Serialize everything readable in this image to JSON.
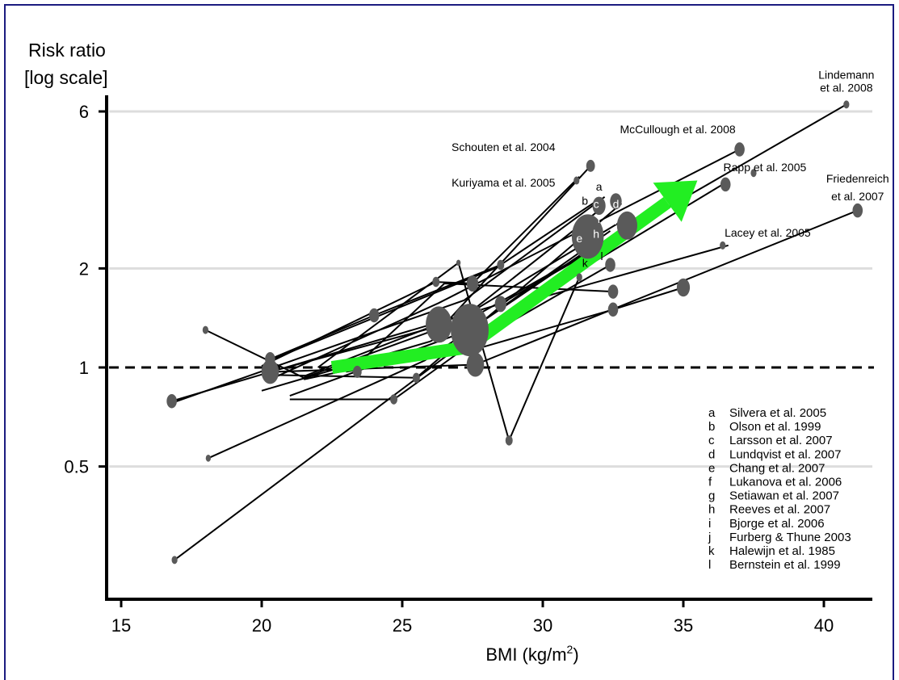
{
  "chart_data": {
    "type": "line",
    "ylabel_line1": "Risk ratio",
    "ylabel_line2": "[log scale]",
    "xlabel": "BMI (kg/m",
    "xlabel_sup": "2",
    "xlabel_close": ")",
    "y_scale": "log",
    "xlim": [
      14.5,
      41.6
    ],
    "ylim": [
      0.25,
      7.4
    ],
    "x_ticks": [
      15,
      20,
      25,
      30,
      35,
      40
    ],
    "x_tick_labels": [
      "15",
      "20",
      "25",
      "30",
      "35",
      "40"
    ],
    "y_ticks": [
      0.5,
      1,
      2,
      6
    ],
    "y_tick_labels": [
      "0.5",
      "1",
      "2",
      "6"
    ],
    "reference_line": 1,
    "grid": "horizontal at y ticks",
    "trend_arrow": [
      [
        22.5,
        1.0
      ],
      [
        27.3,
        1.15
      ],
      [
        35.5,
        3.7
      ]
    ],
    "studies": [
      [
        [
          16.8,
          0.79
        ],
        [
          28.5,
          1.56
        ],
        [
          40.8,
          6.3
        ]
      ],
      [
        [
          20.3,
          0.92
        ],
        [
          26.3,
          1.57
        ],
        [
          37.0,
          4.6
        ]
      ],
      [
        [
          20.3,
          0.97
        ],
        [
          26.5,
          1.35
        ],
        [
          31.7,
          4.1
        ]
      ],
      [
        [
          16.8,
          0.78
        ],
        [
          27.2,
          1.6
        ],
        [
          32.2,
          3.3
        ]
      ],
      [
        [
          20.3,
          1.06
        ],
        [
          24.0,
          1.44
        ],
        [
          28.5,
          2.05
        ],
        [
          31.9,
          3.2
        ]
      ],
      [
        [
          18.0,
          1.3
        ],
        [
          21.5,
          0.93
        ],
        [
          27.0,
          1.38
        ],
        [
          32.2,
          3.1
        ]
      ],
      [
        [
          20.1,
          0.95
        ],
        [
          25.5,
          0.93
        ],
        [
          32.8,
          3.15
        ]
      ],
      [
        [
          20.0,
          1.01
        ],
        [
          26.2,
          1.82
        ],
        [
          27.5,
          1.8
        ],
        [
          31.3,
          3.8
        ]
      ],
      [
        [
          21.0,
          0.82
        ],
        [
          27.4,
          1.3
        ],
        [
          32.4,
          2.6
        ]
      ],
      [
        [
          21.5,
          0.94
        ],
        [
          27.6,
          1.5
        ],
        [
          32.7,
          2.75
        ]
      ],
      [
        [
          20.0,
          0.85
        ],
        [
          26.0,
          1.2
        ],
        [
          32.6,
          2.5
        ]
      ],
      [
        [
          18.1,
          0.53
        ],
        [
          25.8,
          1.05
        ],
        [
          32.0,
          2.4
        ]
      ],
      [
        [
          16.9,
          0.26
        ],
        [
          27.8,
          1.3
        ],
        [
          36.4,
          3.6
        ]
      ],
      [
        [
          21.0,
          0.8
        ],
        [
          24.7,
          0.8
        ],
        [
          29.6,
          1.6
        ],
        [
          36.6,
          2.35
        ]
      ],
      [
        [
          20.5,
          0.97
        ],
        [
          27.6,
          1.02
        ],
        [
          41.2,
          3.0
        ]
      ],
      [
        [
          22.0,
          1.0
        ],
        [
          27.0,
          2.08
        ],
        [
          28.8,
          0.6
        ],
        [
          31.3,
          1.88
        ]
      ],
      [
        [
          20.4,
          1.06
        ],
        [
          28.6,
          2.05
        ]
      ],
      [
        [
          23.0,
          0.97
        ],
        [
          27.5,
          1.13
        ],
        [
          32.5,
          1.5
        ],
        [
          35.0,
          1.75
        ]
      ],
      [
        [
          23.4,
          1.02
        ],
        [
          26.5,
          1.8
        ],
        [
          32.5,
          1.7
        ]
      ],
      [
        [
          21.5,
          0.92
        ],
        [
          27.5,
          1.18
        ],
        [
          32.4,
          2.05
        ]
      ]
    ],
    "points": [
      {
        "x": 16.8,
        "y": 0.79,
        "s": 7
      },
      {
        "x": 16.9,
        "y": 0.26,
        "s": 4
      },
      {
        "x": 18.0,
        "y": 1.3,
        "s": 4
      },
      {
        "x": 18.1,
        "y": 0.53,
        "s": 3.5
      },
      {
        "x": 20.3,
        "y": 0.97,
        "s": 12
      },
      {
        "x": 20.3,
        "y": 1.06,
        "s": 7
      },
      {
        "x": 23.4,
        "y": 0.97,
        "s": 6
      },
      {
        "x": 24.0,
        "y": 1.44,
        "s": 7
      },
      {
        "x": 24.7,
        "y": 0.8,
        "s": 5
      },
      {
        "x": 25.5,
        "y": 0.93,
        "s": 5
      },
      {
        "x": 26.2,
        "y": 1.82,
        "s": 5
      },
      {
        "x": 26.3,
        "y": 1.35,
        "s": 18
      },
      {
        "x": 27.4,
        "y": 1.3,
        "s": 26
      },
      {
        "x": 27.6,
        "y": 1.02,
        "s": 12
      },
      {
        "x": 27.5,
        "y": 1.8,
        "s": 8
      },
      {
        "x": 28.5,
        "y": 1.56,
        "s": 8
      },
      {
        "x": 28.5,
        "y": 2.05,
        "s": 5
      },
      {
        "x": 28.8,
        "y": 0.6,
        "s": 5
      },
      {
        "x": 27.0,
        "y": 2.08,
        "s": 3
      },
      {
        "x": 31.3,
        "y": 1.88,
        "s": 4
      },
      {
        "x": 31.7,
        "y": 4.1,
        "s": 6
      },
      {
        "x": 31.2,
        "y": 3.7,
        "s": 4
      },
      {
        "x": 31.6,
        "y": 2.5,
        "s": 22
      },
      {
        "x": 32.0,
        "y": 3.1,
        "s": 9
      },
      {
        "x": 32.4,
        "y": 2.05,
        "s": 7
      },
      {
        "x": 32.5,
        "y": 1.5,
        "s": 7
      },
      {
        "x": 32.5,
        "y": 1.7,
        "s": 7
      },
      {
        "x": 32.6,
        "y": 3.2,
        "s": 8
      },
      {
        "x": 33.0,
        "y": 2.7,
        "s": 14
      },
      {
        "x": 35.0,
        "y": 1.75,
        "s": 9
      },
      {
        "x": 36.4,
        "y": 2.35,
        "s": 4
      },
      {
        "x": 36.5,
        "y": 3.6,
        "s": 7
      },
      {
        "x": 37.0,
        "y": 4.6,
        "s": 7
      },
      {
        "x": 37.5,
        "y": 3.9,
        "s": 4
      },
      {
        "x": 40.8,
        "y": 6.3,
        "s": 4
      },
      {
        "x": 41.2,
        "y": 3.0,
        "s": 7
      }
    ],
    "annotations": [
      {
        "text": "Lindemann",
        "x": 40.8,
        "y": 7.55,
        "anchor": "middle"
      },
      {
        "text": "et al. 2008",
        "x": 40.8,
        "y": 6.9,
        "anchor": "middle"
      },
      {
        "text": "McCullough et al. 2008",
        "x": 34.8,
        "y": 5.15,
        "anchor": "middle"
      },
      {
        "text": "Schouten et al. 2004",
        "x": 28.6,
        "y": 4.55,
        "anchor": "middle"
      },
      {
        "text": "Rapp et al. 2005",
        "x": 37.9,
        "y": 3.95,
        "anchor": "middle"
      },
      {
        "text": "Kuriyama et al. 2005",
        "x": 28.6,
        "y": 3.55,
        "anchor": "middle"
      },
      {
        "text": "Friedenreich",
        "x": 41.2,
        "y": 3.65,
        "anchor": "middle"
      },
      {
        "text": "et al. 2007",
        "x": 41.2,
        "y": 3.22,
        "anchor": "middle"
      },
      {
        "text": "Lacey et al. 2005",
        "x": 38.0,
        "y": 2.5,
        "anchor": "middle"
      }
    ],
    "letter_marks": [
      {
        "text": "a",
        "x": 32.0,
        "y": 3.45,
        "color": "#000000"
      },
      {
        "text": "b",
        "x": 31.5,
        "y": 3.12,
        "color": "#000000"
      },
      {
        "text": "c",
        "x": 31.9,
        "y": 3.05,
        "color": "#ffffff"
      },
      {
        "text": "d",
        "x": 32.6,
        "y": 3.05,
        "color": "#ffffff"
      },
      {
        "text": "f",
        "x": 32.0,
        "y": 2.75,
        "color": "#ffffff"
      },
      {
        "text": "i",
        "x": 32.6,
        "y": 2.72,
        "color": "#ffffff"
      },
      {
        "text": "e",
        "x": 31.3,
        "y": 2.4,
        "color": "#ffffff"
      },
      {
        "text": "h",
        "x": 31.9,
        "y": 2.48,
        "color": "#ffffff"
      },
      {
        "text": "l",
        "x": 32.1,
        "y": 2.12,
        "color": "#000000"
      },
      {
        "text": "k",
        "x": 31.5,
        "y": 2.02,
        "color": "#000000"
      }
    ],
    "legend_position": "bottom-right",
    "legend": [
      {
        "key": "a",
        "label": "Silvera et al. 2005"
      },
      {
        "key": "b",
        "label": "Olson et al. 1999"
      },
      {
        "key": "c",
        "label": "Larsson et al. 2007"
      },
      {
        "key": "d",
        "label": "Lundqvist et al. 2007"
      },
      {
        "key": "e",
        "label": "Chang et al. 2007"
      },
      {
        "key": "f",
        "label": "Lukanova et al. 2006"
      },
      {
        "key": "g",
        "label": "Setiawan et al. 2007"
      },
      {
        "key": "h",
        "label": "Reeves et al. 2007"
      },
      {
        "key": "i",
        "label": "Bjorge et al. 2006"
      },
      {
        "key": "j",
        "label": "Furberg & Thune 2003"
      },
      {
        "key": "k",
        "label": "Halewijn et al. 1985"
      },
      {
        "key": "l",
        "label": "Bernstein et al. 1999"
      }
    ],
    "colors": {
      "frame": "#1b1b80",
      "trend": "#22ee22",
      "marker": "#5a5a5a",
      "grid": "#dddddd",
      "line": "#000000"
    }
  }
}
